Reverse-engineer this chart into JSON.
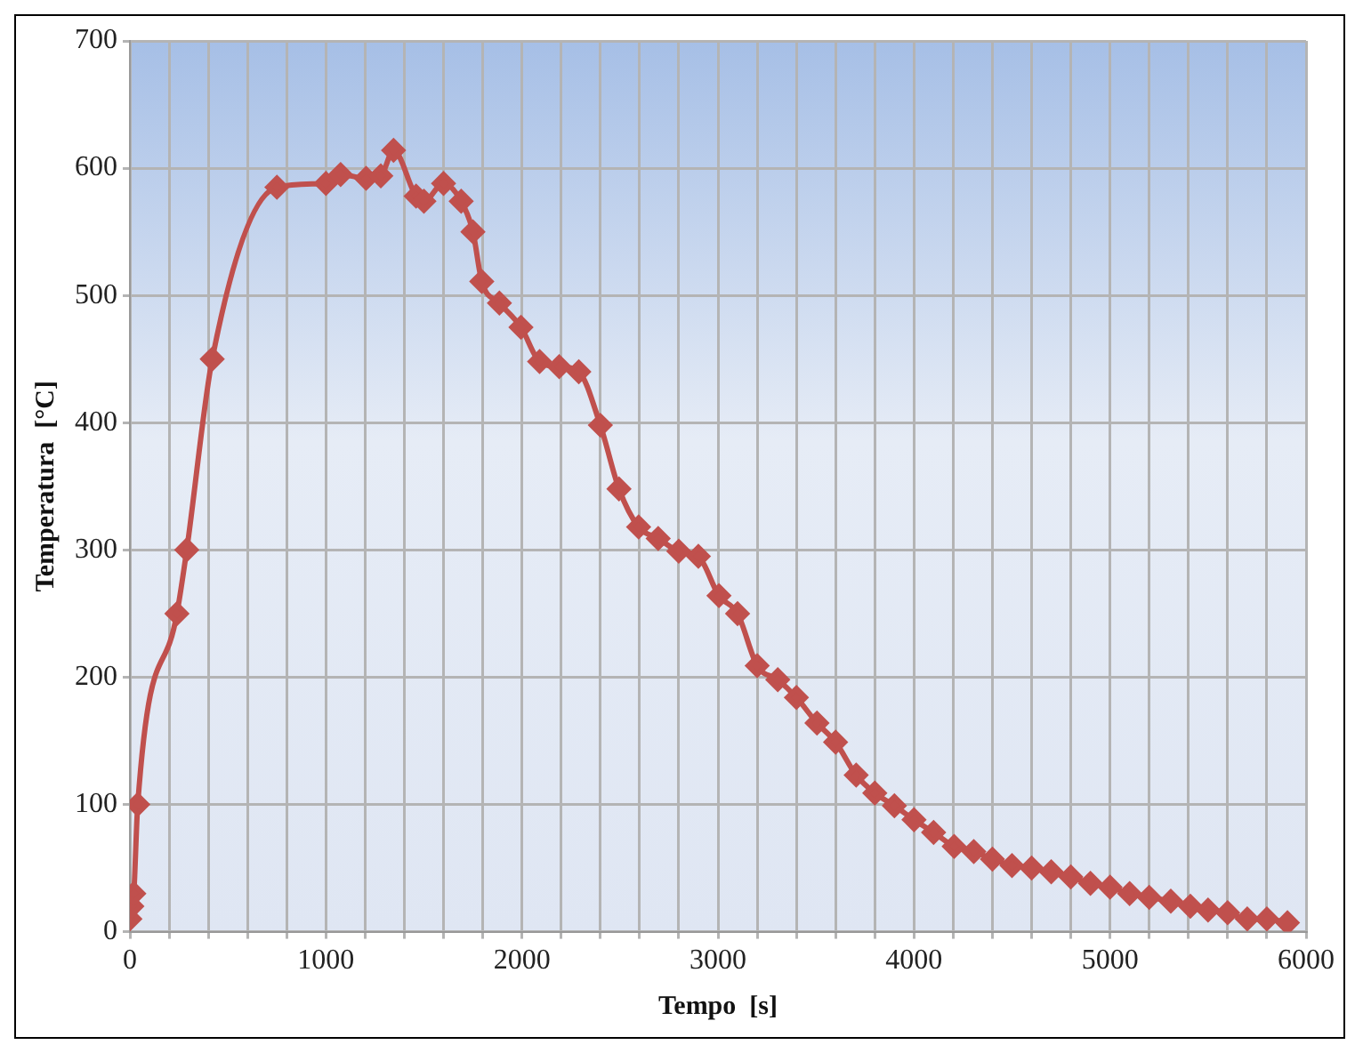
{
  "chart_data": {
    "type": "line",
    "xlabel": "Tempo  [s]",
    "ylabel": "Temperatura  [°C]",
    "xlim": [
      0,
      6000
    ],
    "xticks": [
      0,
      {
        "value": 200,
        "label": null
      },
      {
        "value": 400,
        "label": null
      },
      {
        "value": 600,
        "label": null
      },
      {
        "value": 800,
        "label": null
      },
      1000,
      {
        "value": 1200,
        "label": null
      },
      {
        "value": 1400,
        "label": null
      },
      {
        "value": 1600,
        "label": null
      },
      {
        "value": 1800,
        "label": null
      },
      2000,
      {
        "value": 2200,
        "label": null
      },
      {
        "value": 2400,
        "label": null
      },
      {
        "value": 2600,
        "label": null
      },
      {
        "value": 2800,
        "label": null
      },
      3000,
      {
        "value": 3200,
        "label": null
      },
      {
        "value": 3400,
        "label": null
      },
      {
        "value": 3600,
        "label": null
      },
      {
        "value": 3800,
        "label": null
      },
      4000,
      {
        "value": 4200,
        "label": null
      },
      {
        "value": 4400,
        "label": null
      },
      {
        "value": 4600,
        "label": null
      },
      {
        "value": 4800,
        "label": null
      },
      5000,
      {
        "value": 5200,
        "label": null
      },
      {
        "value": 5400,
        "label": null
      },
      {
        "value": 5600,
        "label": null
      },
      {
        "value": 5800,
        "label": null
      },
      6000
    ],
    "ylim": [
      0,
      700
    ],
    "yticks": [
      0,
      100,
      200,
      300,
      400,
      500,
      600,
      700
    ],
    "grid": true,
    "legend": false,
    "marker": "diamond",
    "line_style": "solid",
    "x": [
      0,
      10,
      20,
      40,
      240,
      290,
      420,
      750,
      1000,
      1075,
      1205,
      1280,
      1345,
      1460,
      1500,
      1600,
      1690,
      1750,
      1795,
      1885,
      1995,
      2090,
      2190,
      2290,
      2400,
      2495,
      2595,
      2695,
      2800,
      2900,
      3005,
      3100,
      3200,
      3305,
      3400,
      3505,
      3600,
      3705,
      3800,
      3900,
      4000,
      4100,
      4205,
      4305,
      4400,
      4500,
      4600,
      4700,
      4800,
      4900,
      5000,
      5100,
      5200,
      5310,
      5410,
      5500,
      5600,
      5700,
      5800,
      5905
    ],
    "series": [
      {
        "color": "#c0504d",
        "values": [
          10,
          20,
          30,
          100,
          250,
          300,
          450,
          585,
          588,
          595,
          592,
          594,
          614,
          578,
          574,
          588,
          574,
          550,
          511,
          494,
          475,
          448,
          444,
          440,
          398,
          348,
          318,
          309,
          299,
          295,
          264,
          250,
          209,
          198,
          184,
          164,
          149,
          123,
          109,
          99,
          88,
          78,
          67,
          63,
          57,
          52,
          50,
          47,
          43,
          38,
          35,
          30,
          27,
          24,
          20,
          17,
          15,
          10,
          10,
          7
        ]
      }
    ]
  }
}
